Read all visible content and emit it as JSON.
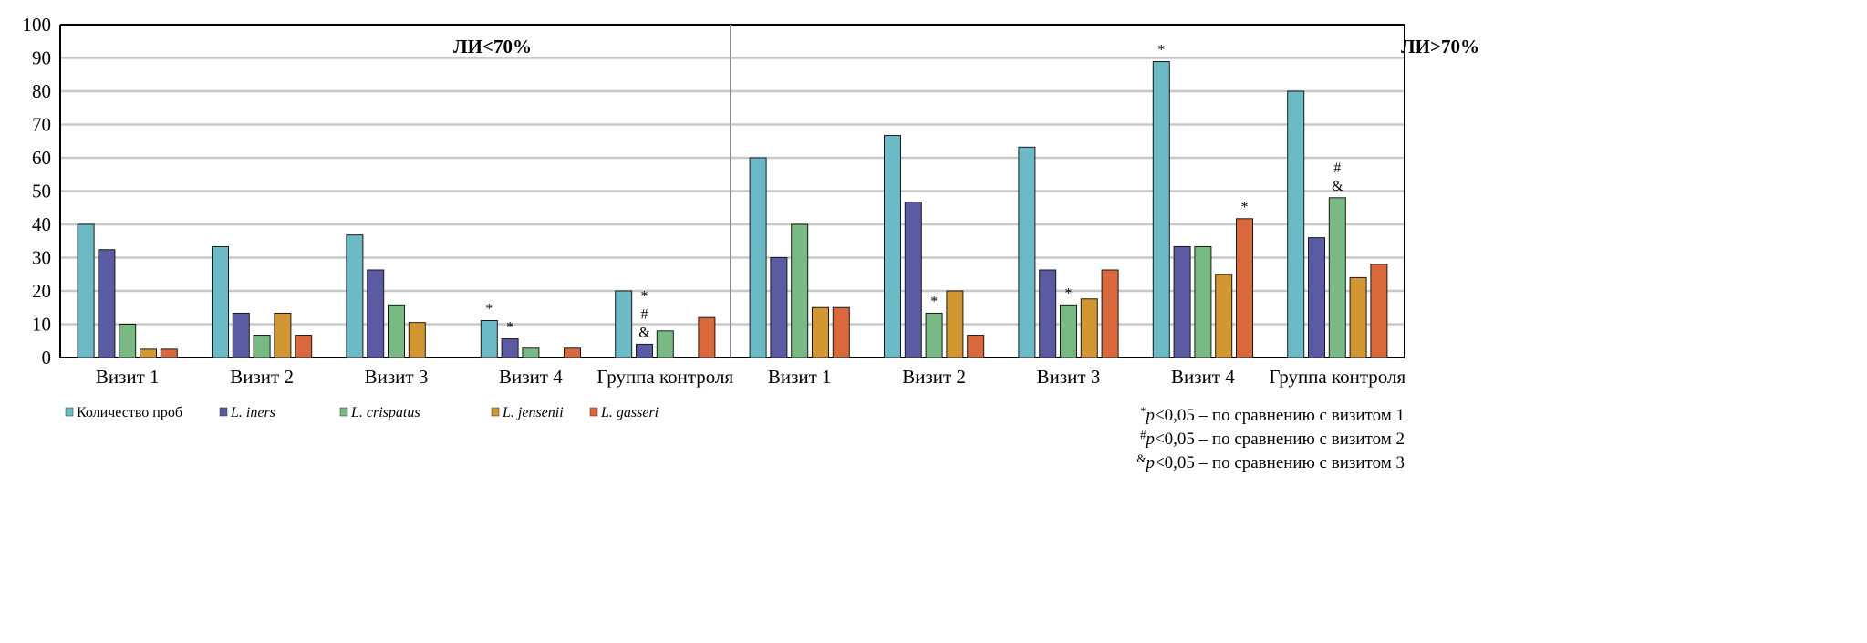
{
  "chart_data": {
    "type": "bar",
    "ylim": [
      0,
      100
    ],
    "yticks": [
      0,
      10,
      20,
      30,
      40,
      50,
      60,
      70,
      80,
      90,
      100
    ],
    "grid": true,
    "panels": [
      {
        "title": "ЛИ<70%",
        "categories": [
          "Визит 1",
          "Визит 2",
          "Визит 3",
          "Визит 4",
          "Группа контроля"
        ],
        "series": [
          {
            "name": "Количество проб",
            "values": [
              40,
              33.3,
              36.8,
              11.1,
              20
            ]
          },
          {
            "name": "L. iners",
            "values": [
              32.4,
              13.3,
              26.3,
              5.6,
              4
            ]
          },
          {
            "name": "L. crispatus",
            "values": [
              10,
              6.7,
              15.8,
              2.8,
              8
            ]
          },
          {
            "name": "L. jensenii",
            "values": [
              2.5,
              13.3,
              10.5,
              0,
              0
            ]
          },
          {
            "name": "L. gasseri",
            "values": [
              2.5,
              6.7,
              0,
              2.8,
              12
            ]
          }
        ],
        "annotations": [
          {
            "category": 3,
            "series": 0,
            "text": "*"
          },
          {
            "category": 3,
            "series": 1,
            "text": "*"
          },
          {
            "category": 4,
            "series": 1,
            "text": "*\n#\n&"
          }
        ]
      },
      {
        "title": "ЛИ>70%",
        "categories": [
          "Визит 1",
          "Визит 2",
          "Визит 3",
          "Визит 4",
          "Группа контроля"
        ],
        "series": [
          {
            "name": "Количество проб",
            "values": [
              60,
              66.7,
              63.2,
              88.9,
              80
            ]
          },
          {
            "name": "L. iners",
            "values": [
              30,
              46.7,
              26.3,
              33.3,
              36
            ]
          },
          {
            "name": "L. crispatus",
            "values": [
              40,
              13.3,
              15.8,
              33.3,
              48
            ]
          },
          {
            "name": "L. jensenii",
            "values": [
              15,
              20,
              17.6,
              25,
              24
            ]
          },
          {
            "name": "L. gasseri",
            "values": [
              15,
              6.7,
              26.3,
              41.7,
              28
            ]
          }
        ],
        "annotations": [
          {
            "category": 1,
            "series": 2,
            "text": "*"
          },
          {
            "category": 2,
            "series": 2,
            "text": "*"
          },
          {
            "category": 3,
            "series": 0,
            "text": "*"
          },
          {
            "category": 3,
            "series": 4,
            "text": "*"
          },
          {
            "category": 4,
            "series": 2,
            "text": "#\n&"
          }
        ]
      }
    ],
    "legend": {
      "placement": "bottom-left",
      "entries": [
        "Количество проб",
        "L. iners",
        "L. crispatus",
        "L. jensenii",
        "L. gasseri"
      ]
    },
    "colors": [
      "#6bbac6",
      "#5a5ba3",
      "#79b983",
      "#d29633",
      "#d9683d"
    ],
    "footnotes": [
      {
        "sym": "*",
        "p": "p",
        "text": "<0,05 – по сравнению с визитом 1"
      },
      {
        "sym": "#",
        "p": "p",
        "text": "<0,05 – по сравнению с визитом 2"
      },
      {
        "sym": "&",
        "p": "p",
        "text": "<0,05 – по сравнению с визитом 3"
      }
    ]
  }
}
